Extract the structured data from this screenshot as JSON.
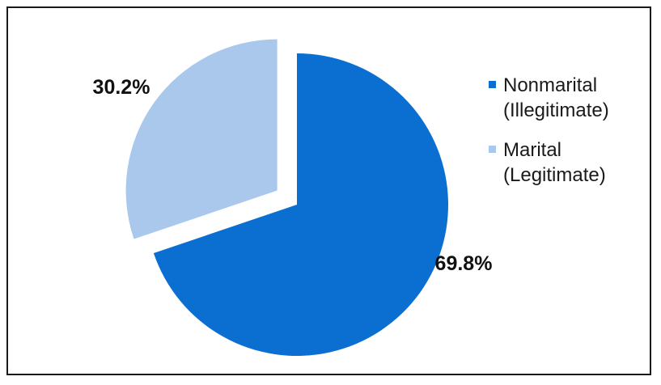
{
  "chart_data": {
    "type": "pie",
    "slices": [
      {
        "label_line1": "Nonmarital",
        "label_line2": "(Illegitimate)",
        "value": 69.8,
        "value_label": "69.8%",
        "color": "#0a6fd1"
      },
      {
        "label_line1": "Marital",
        "label_line2": "(Legitimate)",
        "value": 30.2,
        "value_label": "30.2%",
        "color": "#a9c8ec"
      }
    ],
    "start_angle_deg": 0,
    "exploded_slice": 1,
    "legend_position": "right"
  }
}
